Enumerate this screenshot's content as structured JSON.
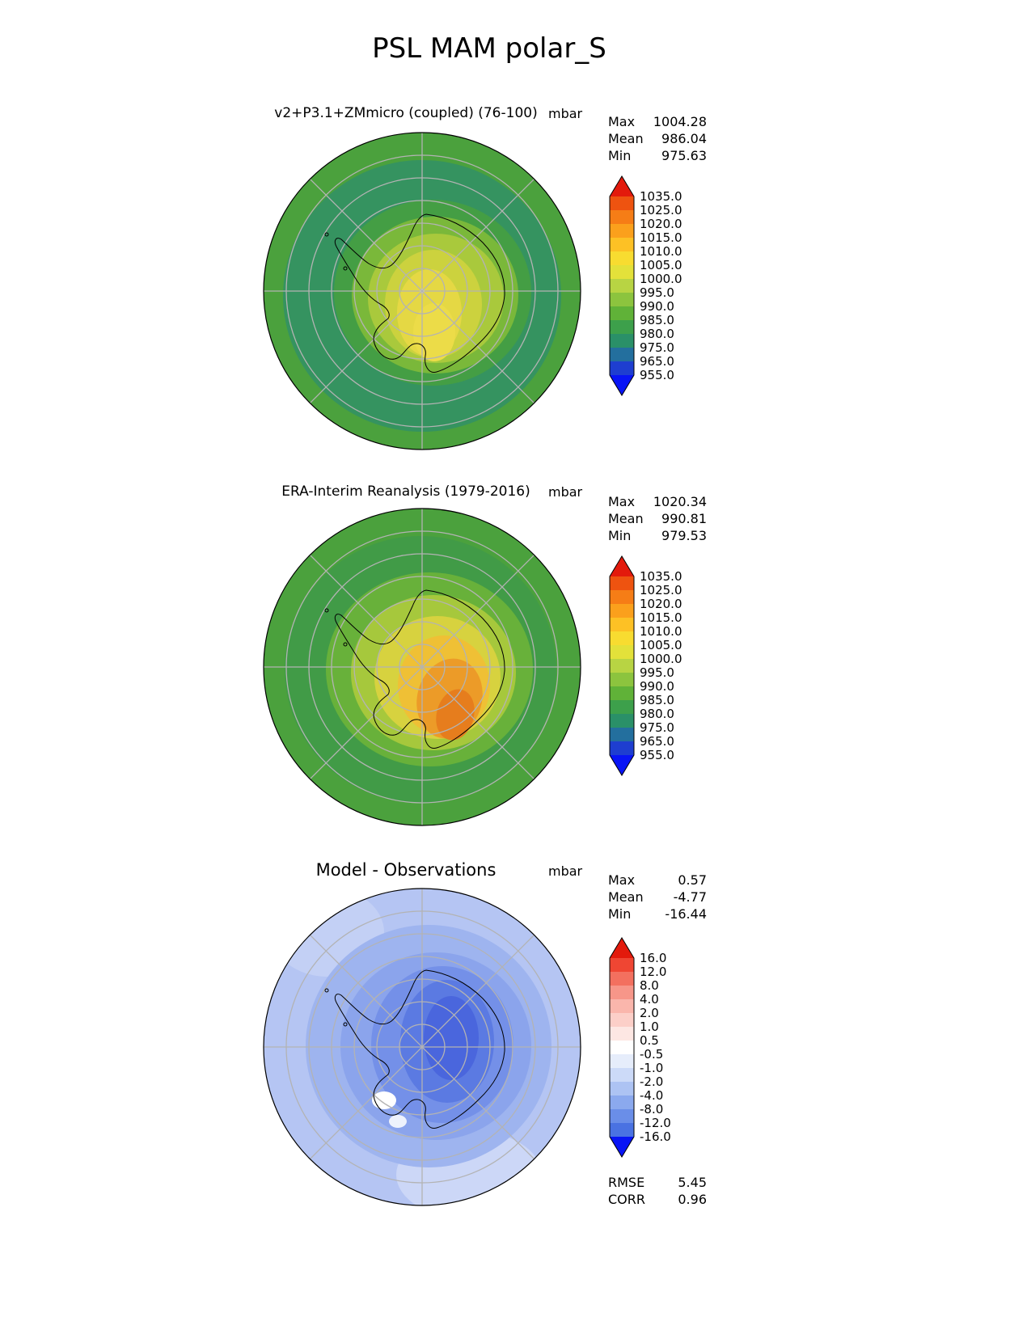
{
  "page": {
    "title": "PSL MAM polar_S"
  },
  "panels": [
    {
      "title": "v2+P3.1+ZMmicro (coupled) (76-100)",
      "units": "mbar",
      "stats": [
        {
          "label": "Max",
          "value": "1004.28"
        },
        {
          "label": "Mean",
          "value": "986.04"
        },
        {
          "label": "Min",
          "value": "975.63"
        }
      ],
      "colorbar": {
        "labels": [
          "1035.0",
          "1025.0",
          "1020.0",
          "1015.0",
          "1010.0",
          "1005.0",
          "1000.0",
          "995.0",
          "990.0",
          "985.0",
          "980.0",
          "975.0",
          "965.0",
          "955.0"
        ],
        "colors": [
          "#e31a0c",
          "#ee5310",
          "#f67d16",
          "#fba01c",
          "#fdc125",
          "#f8dc30",
          "#e3e13a",
          "#b8d443",
          "#8cc43e",
          "#60b238",
          "#3da04b",
          "#2a9068",
          "#236f9e",
          "#1e3ed0",
          "#0814f5"
        ]
      }
    },
    {
      "title": "ERA-Interim Reanalysis (1979-2016)",
      "units": "mbar",
      "stats": [
        {
          "label": "Max",
          "value": "1020.34"
        },
        {
          "label": "Mean",
          "value": "990.81"
        },
        {
          "label": "Min",
          "value": "979.53"
        }
      ],
      "colorbar": {
        "labels": [
          "1035.0",
          "1025.0",
          "1020.0",
          "1015.0",
          "1010.0",
          "1005.0",
          "1000.0",
          "995.0",
          "990.0",
          "985.0",
          "980.0",
          "975.0",
          "965.0",
          "955.0"
        ],
        "colors": [
          "#e31a0c",
          "#ee5310",
          "#f67d16",
          "#fba01c",
          "#fdc125",
          "#f8dc30",
          "#e3e13a",
          "#b8d443",
          "#8cc43e",
          "#60b238",
          "#3da04b",
          "#2a9068",
          "#236f9e",
          "#1e3ed0",
          "#0814f5"
        ]
      }
    },
    {
      "title": "Model - Observations",
      "units": "mbar",
      "stats": [
        {
          "label": "Max",
          "value": "0.57"
        },
        {
          "label": "Mean",
          "value": "-4.77"
        },
        {
          "label": "Min",
          "value": "-16.44"
        }
      ],
      "colorbar": {
        "labels": [
          "16.0",
          "12.0",
          "8.0",
          "4.0",
          "2.0",
          "1.0",
          "0.5",
          "-0.5",
          "-1.0",
          "-2.0",
          "-4.0",
          "-8.0",
          "-12.0",
          "-16.0"
        ],
        "colors": [
          "#e31a0c",
          "#ef4633",
          "#f3705f",
          "#f79689",
          "#fab6ac",
          "#fccfc8",
          "#fde7e3",
          "#ffffff",
          "#e6edfb",
          "#ccdaf8",
          "#adc3f3",
          "#8ba9ee",
          "#6a8ee8",
          "#4a72e2",
          "#0814f5"
        ]
      },
      "extra": [
        {
          "label": "RMSE",
          "value": "5.45"
        },
        {
          "label": "CORR",
          "value": "0.96"
        }
      ]
    }
  ],
  "chart_data": [
    {
      "type": "heatmap",
      "subtype": "filled-contour-polar-map",
      "projection": "south-polar-stereographic",
      "variable": "PSL",
      "season": "MAM",
      "region": "polar_S",
      "title": "v2+P3.1+ZMmicro (coupled) (76-100)",
      "units": "mbar",
      "stats": {
        "max": 1004.28,
        "mean": 986.04,
        "min": 975.63
      },
      "contour_levels": [
        955.0,
        965.0,
        975.0,
        980.0,
        985.0,
        990.0,
        995.0,
        1000.0,
        1005.0,
        1010.0,
        1015.0,
        1020.0,
        1025.0,
        1035.0
      ],
      "palette": "blue-teal-green-yellow-orange-red",
      "legend_position": "right"
    },
    {
      "type": "heatmap",
      "subtype": "filled-contour-polar-map",
      "projection": "south-polar-stereographic",
      "variable": "PSL",
      "season": "MAM",
      "region": "polar_S",
      "title": "ERA-Interim Reanalysis (1979-2016)",
      "units": "mbar",
      "stats": {
        "max": 1020.34,
        "mean": 990.81,
        "min": 979.53
      },
      "contour_levels": [
        955.0,
        965.0,
        975.0,
        980.0,
        985.0,
        990.0,
        995.0,
        1000.0,
        1005.0,
        1010.0,
        1015.0,
        1020.0,
        1025.0,
        1035.0
      ],
      "palette": "blue-teal-green-yellow-orange-red",
      "legend_position": "right"
    },
    {
      "type": "heatmap",
      "subtype": "filled-contour-polar-map",
      "projection": "south-polar-stereographic",
      "variable": "PSL",
      "season": "MAM",
      "region": "polar_S",
      "title": "Model - Observations",
      "units": "mbar",
      "stats": {
        "max": 0.57,
        "mean": -4.77,
        "min": -16.44,
        "rmse": 5.45,
        "corr": 0.96
      },
      "contour_levels": [
        -16.0,
        -12.0,
        -8.0,
        -4.0,
        -2.0,
        -1.0,
        -0.5,
        0.5,
        1.0,
        2.0,
        4.0,
        8.0,
        12.0,
        16.0
      ],
      "palette": "blue-white-red",
      "legend_position": "right"
    }
  ]
}
